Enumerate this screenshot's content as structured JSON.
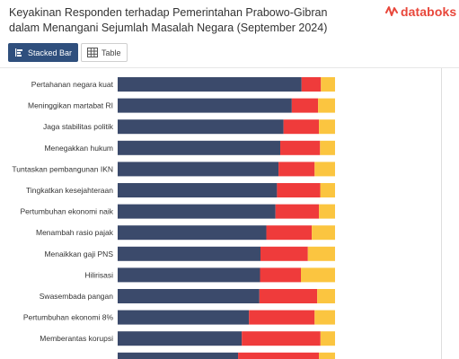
{
  "header": {
    "title": "Keyakinan Responden terhadap Pemerintahan Prabowo-Gibran dalam Menangani Sejumlah Masalah Negara (September 2024)",
    "logo_text": "databoks"
  },
  "toolbar": {
    "stacked_bar_label": "Stacked Bar",
    "table_label": "Table"
  },
  "colors": {
    "accent": "#2f4f7d",
    "series_1": "#3b4a6b",
    "series_2": "#ef3b3b",
    "series_3": "#fbc540",
    "logo": "#e8473b"
  },
  "chart_data": {
    "type": "bar",
    "orientation": "horizontal",
    "stacked": true,
    "percent": true,
    "categories": [
      "Pertahanan negara kuat",
      "Meninggikan martabat RI",
      "Jaga stabilitas politik",
      "Menegakkan hukum",
      "Tuntaskan pembangunan IKN",
      "Tingkatkan kesejahteraan",
      "Pertumbuhan ekonomi naik",
      "Menambah rasio pajak",
      "Menaikkan gaji PNS",
      "Hilirisasi",
      "Swasembada pangan",
      "Pertumbuhan ekonomi 8%",
      "Memberantas korupsi",
      ""
    ],
    "series": [
      {
        "values": [
          84.6,
          80.1,
          76.3,
          74.8,
          74.0,
          73.3,
          72.6,
          68.4,
          65.7,
          65.5,
          65.2,
          60.4,
          57.1,
          55.4
        ]
      },
      {
        "values": [
          8.9,
          12.1,
          16.3,
          18.3,
          16.6,
          19.9,
          20.0,
          20.9,
          21.8,
          18.8,
          26.6,
          30.2,
          36.2,
          37.2
        ]
      },
      {
        "values": [
          6.5,
          7.8,
          7.4,
          6.9,
          9.4,
          6.8,
          7.4,
          10.7,
          12.5,
          15.7,
          8.2,
          9.4,
          6.7,
          7.4
        ]
      }
    ],
    "xlim": [
      0,
      100
    ],
    "legend": "none",
    "grid": false
  }
}
